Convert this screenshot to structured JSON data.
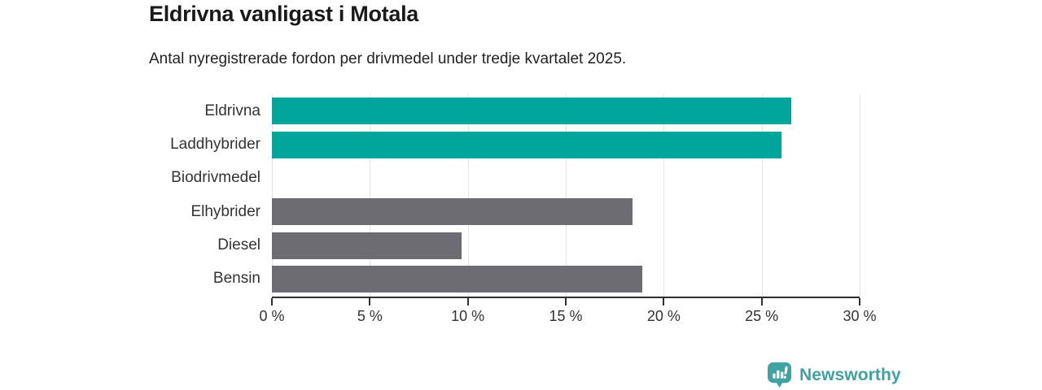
{
  "header": {
    "title": "Eldrivna vanligast i Motala",
    "subtitle": "Antal nyregistrerade fordon per drivmedel under tredje kvartalet 2025."
  },
  "chart_data": {
    "type": "bar",
    "orientation": "horizontal",
    "title": "Eldrivna vanligast i Motala",
    "subtitle": "Antal nyregistrerade fordon per drivmedel under tredje kvartalet 2025.",
    "categories": [
      "Eldrivna",
      "Laddhybrider",
      "Biodrivmedel",
      "Elhybrider",
      "Diesel",
      "Bensin"
    ],
    "values": [
      26.5,
      26.0,
      0,
      18.4,
      9.7,
      18.9
    ],
    "unit": "%",
    "xlim": [
      0,
      30
    ],
    "xticks": [
      0,
      5,
      10,
      15,
      20,
      25,
      30
    ],
    "xtick_labels": [
      "0 %",
      "5 %",
      "10 %",
      "15 %",
      "20 %",
      "25 %",
      "30 %"
    ],
    "bar_colors": [
      "#00A69B",
      "#00A69B",
      "#6C6C72",
      "#6C6C72",
      "#6C6C72",
      "#6C6C72"
    ],
    "grid": "vertical gridlines at every 5 %",
    "legend": "none",
    "ylabel": "",
    "xlabel": ""
  },
  "branding": {
    "name": "Newsworthy",
    "icon": "bar-chart-speech-bubble-icon",
    "color": "#3FA1A1",
    "icon_fill": "#3FA3A1"
  },
  "colors": {
    "accent_teal": "#00A69B",
    "neutral_gray": "#6C6C72",
    "gridline": "#E4E4E4",
    "axis": "#2F2F2F",
    "text": "#333333",
    "background": "#FFFFFF"
  }
}
